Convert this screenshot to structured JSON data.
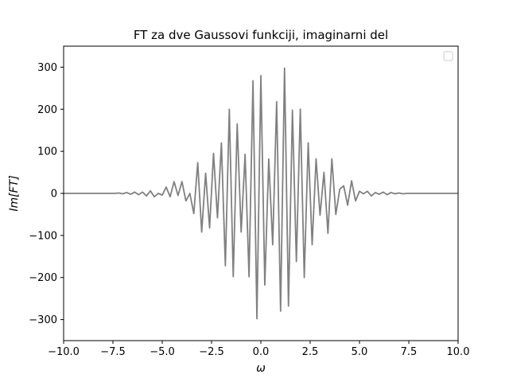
{
  "chart_data": {
    "type": "line",
    "title": "FT za dve Gaussovi funkciji, imaginarni del",
    "xlabel": "ω",
    "ylabel": "Im[FT]",
    "xlim": [
      -10,
      10
    ],
    "ylim": [
      -350,
      350
    ],
    "xticks": [
      -10.0,
      -7.5,
      -5.0,
      -2.5,
      0.0,
      2.5,
      5.0,
      7.5,
      10.0
    ],
    "xtick_labels": [
      "−10.0",
      "−7.5",
      "−5.0",
      "−2.5",
      "0.0",
      "2.5",
      "5.0",
      "7.5",
      "10.0"
    ],
    "yticks": [
      -300,
      -200,
      -100,
      0,
      100,
      200,
      300
    ],
    "ytick_labels": [
      "−300",
      "−200",
      "−100",
      "0",
      "100",
      "200",
      "300"
    ],
    "grid": false,
    "legend": "top-right (empty)",
    "series": [
      {
        "color": "#808080",
        "x": [
          -10.0,
          -9.0,
          -8.0,
          -7.4,
          -7.2,
          -7.0,
          -6.8,
          -6.6,
          -6.4,
          -6.2,
          -6.0,
          -5.8,
          -5.6,
          -5.4,
          -5.2,
          -5.0,
          -4.8,
          -4.6,
          -4.4,
          -4.2,
          -4.0,
          -3.8,
          -3.6,
          -3.4,
          -3.2,
          -3.0,
          -2.8,
          -2.6,
          -2.4,
          -2.2,
          -2.0,
          -1.8,
          -1.6,
          -1.4,
          -1.2,
          -1.0,
          -0.8,
          -0.6,
          -0.4,
          -0.2,
          0.0,
          0.2,
          0.4,
          0.6,
          0.8,
          1.0,
          1.2,
          1.4,
          1.6,
          1.8,
          2.0,
          2.2,
          2.4,
          2.6,
          2.8,
          3.0,
          3.2,
          3.4,
          3.6,
          3.8,
          4.0,
          4.2,
          4.4,
          4.6,
          4.8,
          5.0,
          5.2,
          5.4,
          5.6,
          5.8,
          6.0,
          6.2,
          6.4,
          6.6,
          6.8,
          7.0,
          7.2,
          7.4,
          8.0,
          9.0,
          10.0
        ],
        "y": [
          0,
          0,
          0,
          0,
          1,
          -1,
          2,
          -2,
          3,
          -3,
          3,
          -6,
          6,
          -8,
          0,
          -4,
          15,
          -8,
          28,
          -5,
          28,
          -18,
          0,
          -48,
          73,
          -92,
          48,
          -82,
          95,
          -58,
          120,
          -172,
          200,
          -198,
          165,
          -92,
          93,
          -198,
          268,
          -298,
          280,
          -218,
          82,
          -122,
          218,
          -280,
          298,
          -268,
          198,
          -162,
          200,
          -200,
          120,
          -122,
          82,
          -52,
          50,
          -95,
          82,
          -50,
          10,
          18,
          -28,
          30,
          -18,
          5,
          -1,
          5,
          -6,
          2,
          -2,
          3,
          -3,
          2,
          -1,
          1,
          -1,
          0,
          0,
          0,
          0
        ]
      }
    ]
  }
}
